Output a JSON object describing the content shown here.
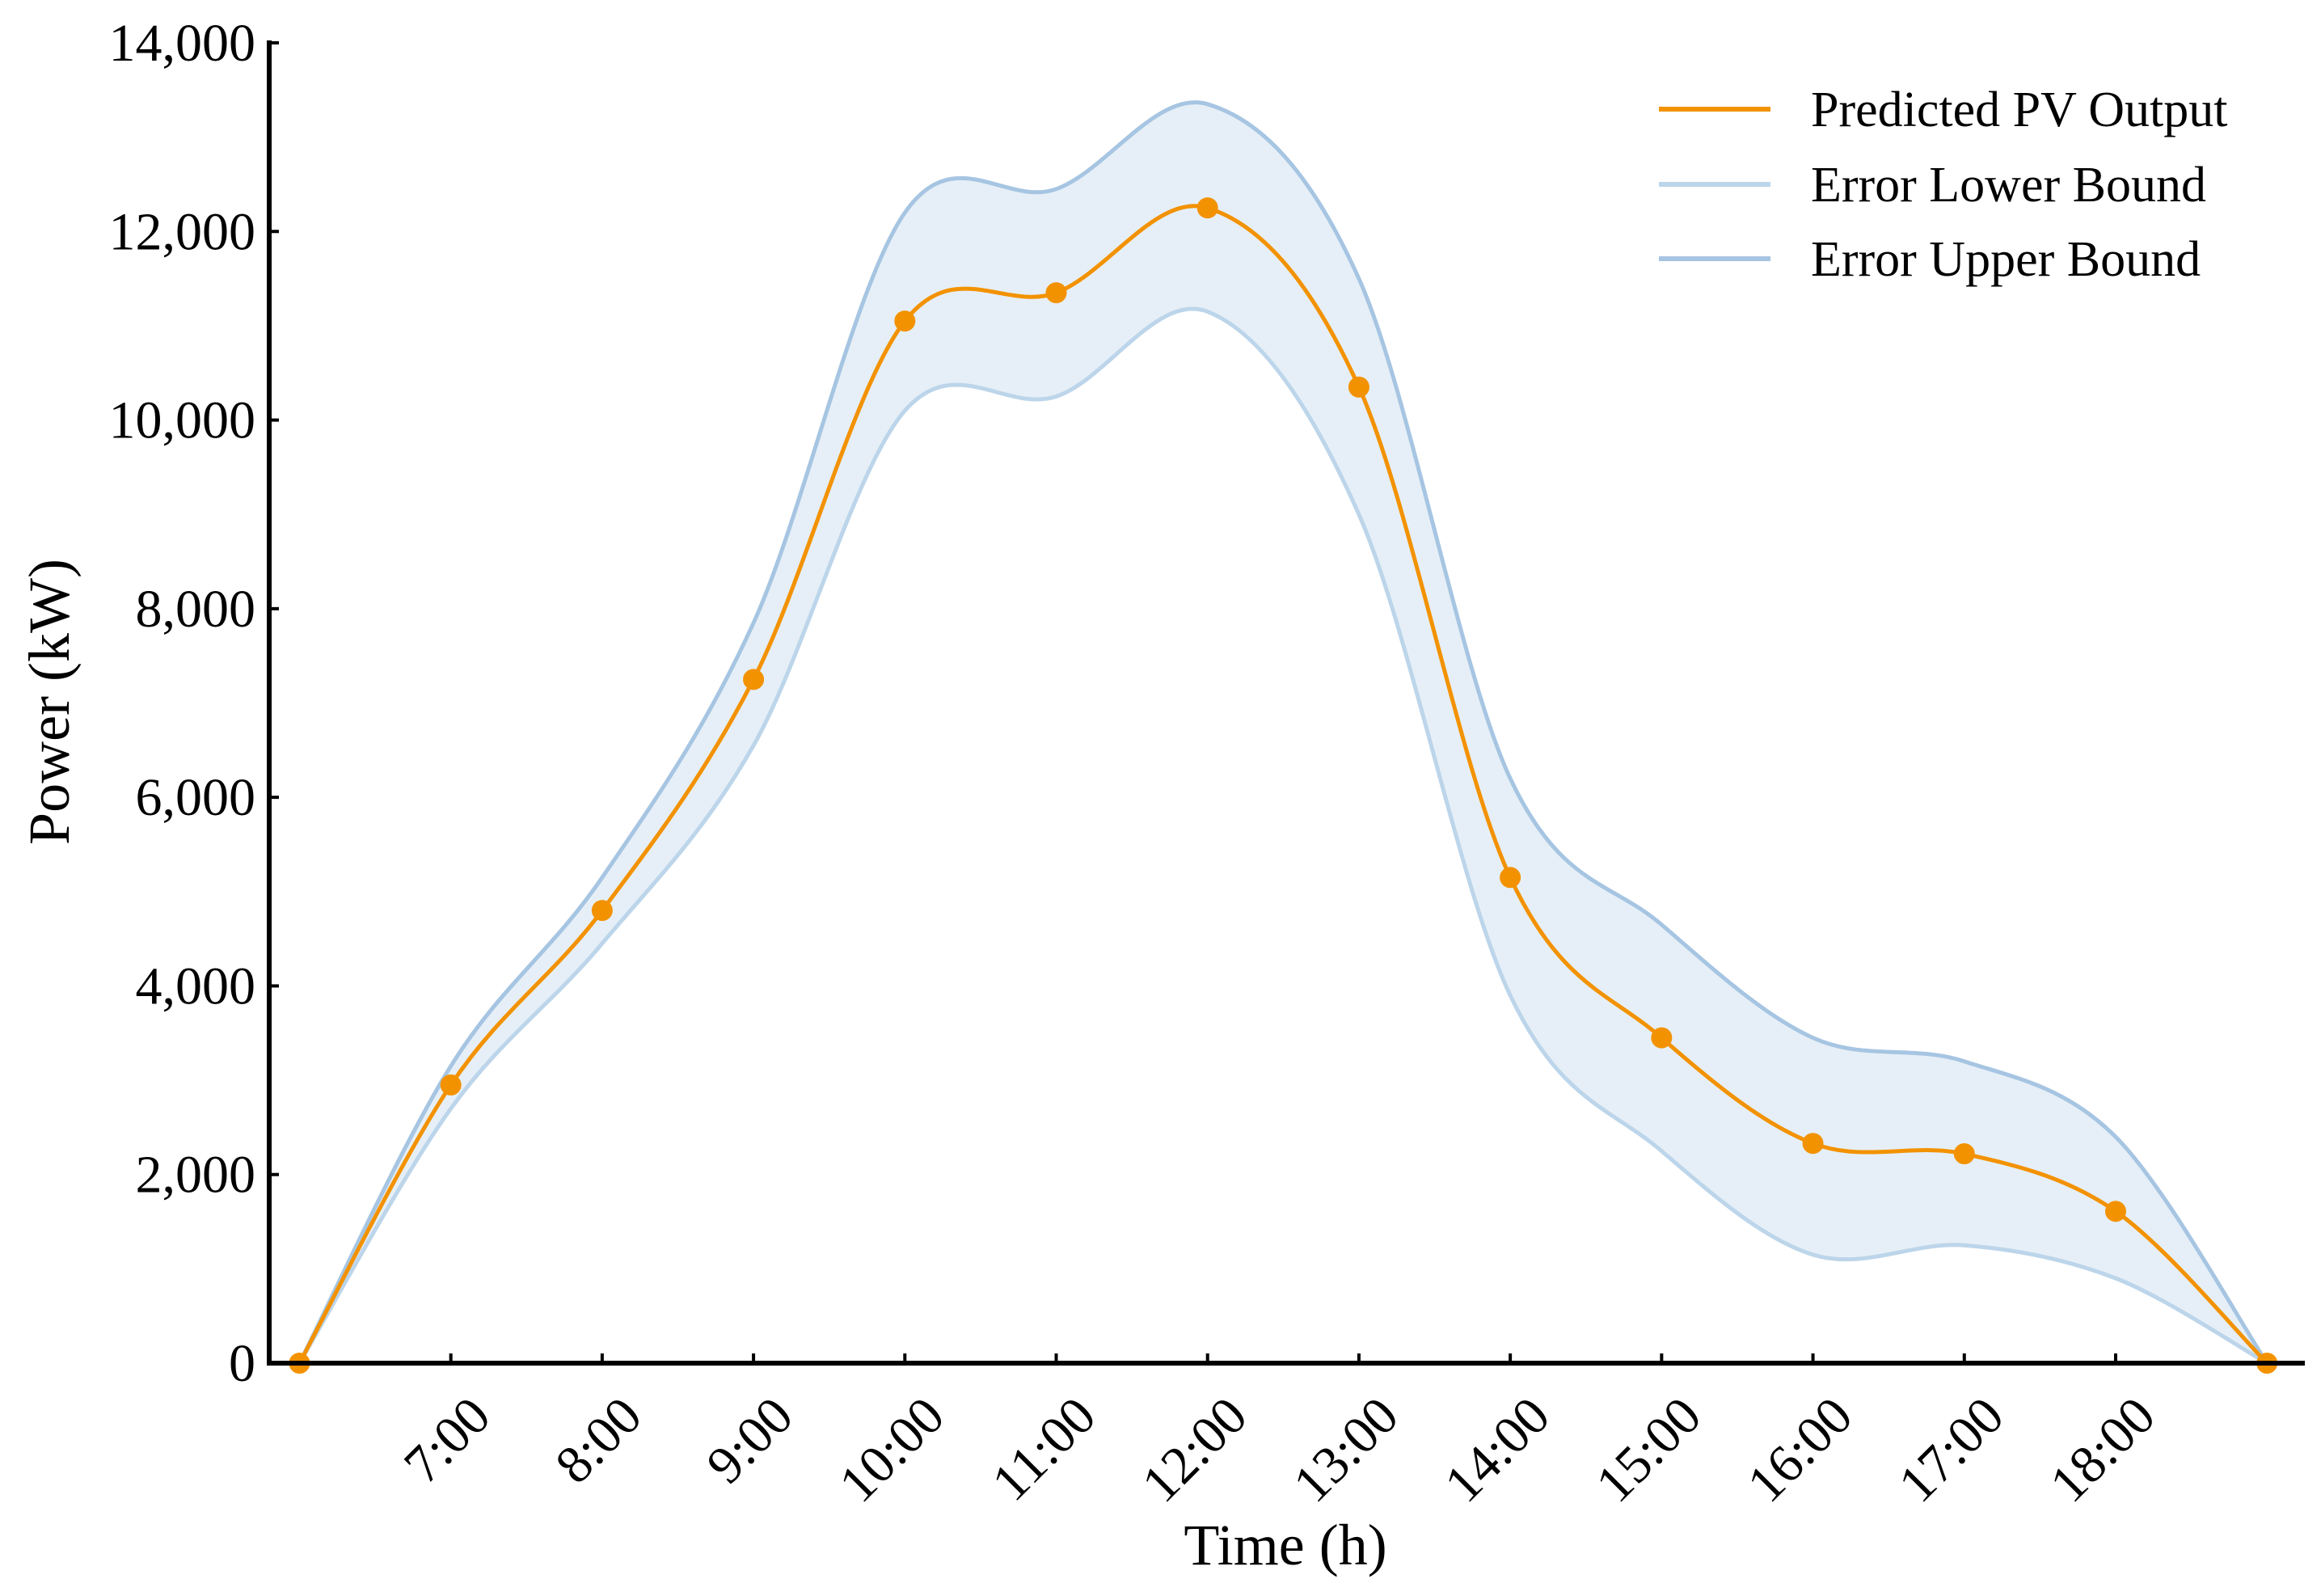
{
  "chart_data": {
    "type": "line",
    "title": "",
    "xlabel": "Time (h)",
    "ylabel": "Power (kW)",
    "ylim": [
      0,
      14000
    ],
    "xlim": [
      5.8,
      19.25
    ],
    "grid": false,
    "legend_position": "top-right",
    "x_ticks": [
      {
        "x": 7,
        "label": "7:00"
      },
      {
        "x": 8,
        "label": "8:00"
      },
      {
        "x": 9,
        "label": "9:00"
      },
      {
        "x": 10,
        "label": "10:00"
      },
      {
        "x": 11,
        "label": "11:00"
      },
      {
        "x": 12,
        "label": "12:00"
      },
      {
        "x": 13,
        "label": "13:00"
      },
      {
        "x": 14,
        "label": "14:00"
      },
      {
        "x": 15,
        "label": "15:00"
      },
      {
        "x": 16,
        "label": "16:00"
      },
      {
        "x": 17,
        "label": "17:00"
      },
      {
        "x": 18,
        "label": "18:00"
      }
    ],
    "y_ticks": [
      {
        "y": 0,
        "label": "0"
      },
      {
        "y": 2000,
        "label": "2,000"
      },
      {
        "y": 4000,
        "label": "4,000"
      },
      {
        "y": 6000,
        "label": "6,000"
      },
      {
        "y": 8000,
        "label": "8,000"
      },
      {
        "y": 10000,
        "label": "10,000"
      },
      {
        "y": 12000,
        "label": "12,000"
      },
      {
        "y": 14000,
        "label": "14,000"
      }
    ],
    "series": [
      {
        "name": "Predicted PV Output",
        "color": "#F39200",
        "x": [
          6,
          7,
          8,
          9,
          10,
          11,
          12,
          13,
          14,
          15,
          16,
          17,
          18,
          19
        ],
        "values": [
          0,
          2950,
          4800,
          7250,
          11050,
          11350,
          12250,
          10350,
          5150,
          3450,
          2330,
          2220,
          1610,
          0
        ],
        "markers": true
      },
      {
        "name": "Error Lower Bound",
        "color": "#BCD5EA",
        "x": [
          6,
          7,
          8,
          9,
          10,
          11,
          12,
          13,
          14,
          15,
          16,
          17,
          18,
          19
        ],
        "values": [
          0,
          2700,
          4450,
          6550,
          10100,
          10250,
          11150,
          9000,
          3900,
          2250,
          1150,
          1250,
          900,
          0
        ],
        "markers": false
      },
      {
        "name": "Error Upper Bound",
        "color": "#A6C5E2",
        "x": [
          6,
          7,
          8,
          9,
          10,
          11,
          12,
          13,
          14,
          15,
          16,
          17,
          18,
          19
        ],
        "values": [
          0,
          3150,
          5150,
          7850,
          12200,
          12450,
          13350,
          11500,
          6200,
          4650,
          3450,
          3200,
          2400,
          0
        ],
        "markers": false
      }
    ],
    "band": {
      "lower": "Error Lower Bound",
      "upper": "Error Upper Bound",
      "color": "#E6EFF7"
    }
  }
}
